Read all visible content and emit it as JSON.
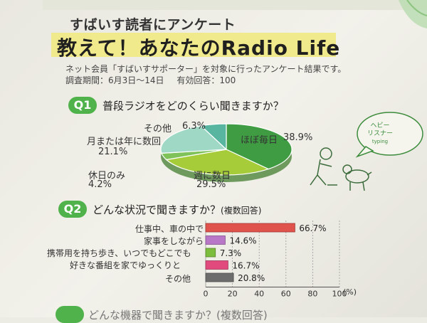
{
  "kicker": "すばいす読者にアンケート",
  "headline": "教えて！あなたのRadio Life",
  "subtitle": "ネット会員「すばいすサポーター」を対象に行ったアンケート結果です。",
  "survey": {
    "period": "調査期間：6月3日〜14日",
    "responses": "有効回答：100"
  },
  "q1": {
    "badge": "Q1",
    "question": "普段ラジオをどのくらい聞きますか？",
    "bubble": [
      "ヘビー",
      "リスナー",
      "typing"
    ],
    "chart_data": {
      "type": "pie",
      "categories": [
        "ほぼ毎日",
        "週に数日",
        "休日のみ",
        "月または年に数回",
        "その他"
      ],
      "values": [
        38.9,
        29.5,
        4.2,
        21.1,
        6.3
      ],
      "value_labels": [
        "38.9%",
        "29.5%",
        "4.2%",
        "21.1%",
        "6.3%"
      ],
      "colors": [
        "#3f9c42",
        "#a6cc3a",
        "#7fc25a",
        "#9fd8c4",
        "#58b6a0"
      ]
    }
  },
  "q2": {
    "badge": "Q2",
    "question": "どんな状況で聞きますか？",
    "note": "(複数回答)",
    "chart_data": {
      "type": "bar",
      "categories": [
        "仕事中、車の中で",
        "家事をしながら",
        "携帯用を持ち歩き、いつでもどこでも",
        "好きな番組を家でゆっくりと",
        "その他"
      ],
      "values": [
        66.7,
        14.6,
        7.3,
        16.7,
        20.8
      ],
      "value_labels": [
        "66.7%",
        "14.6%",
        "7.3%",
        "16.7%",
        "20.8%"
      ],
      "colors": [
        "#e0524c",
        "#b877c7",
        "#7dbd3e",
        "#e04a7d",
        "#6d6d6d"
      ],
      "ticks": [
        "0",
        "20",
        "40",
        "60",
        "80",
        "100"
      ],
      "unit": "(%)",
      "xlim": [
        0,
        100
      ]
    }
  },
  "q3_partial": "どんな機器で聞きますか？(複数回答)"
}
